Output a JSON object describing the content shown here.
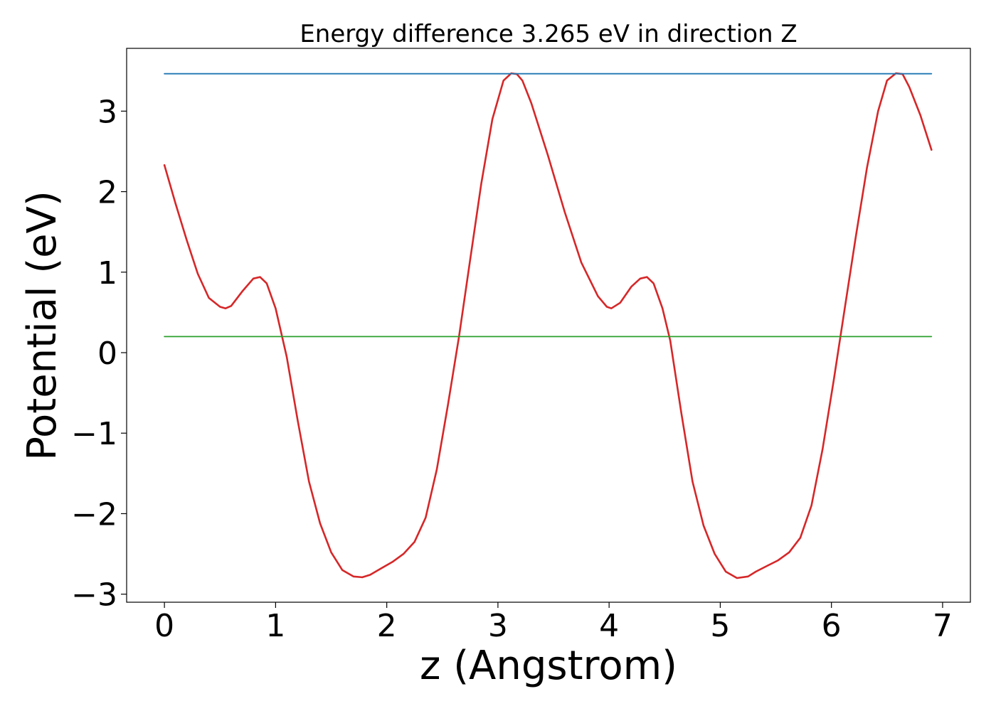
{
  "chart_data": {
    "type": "line",
    "title": "Energy difference 3.265 eV in direction Z",
    "xlabel": "z (Angstrom)",
    "ylabel": "Potential (eV)",
    "xlim": [
      -0.34,
      7.25
    ],
    "ylim": [
      -3.1,
      3.78
    ],
    "xticks": [
      0,
      1,
      2,
      3,
      4,
      5,
      6,
      7
    ],
    "xtick_labels": [
      "0",
      "1",
      "2",
      "3",
      "4",
      "5",
      "6",
      "7"
    ],
    "yticks": [
      -3,
      -2,
      -1,
      0,
      1,
      2,
      3
    ],
    "ytick_labels": [
      "−3",
      "−2",
      "−1",
      "0",
      "1",
      "2",
      "3"
    ],
    "grid": false,
    "series": [
      {
        "color": "#d62728",
        "x": [
          0.0,
          0.1,
          0.2,
          0.3,
          0.4,
          0.5,
          0.55,
          0.6,
          0.7,
          0.8,
          0.86,
          0.92,
          1.0,
          1.1,
          1.2,
          1.3,
          1.4,
          1.5,
          1.6,
          1.7,
          1.78,
          1.85,
          1.95,
          2.05,
          2.15,
          2.25,
          2.35,
          2.45,
          2.55,
          2.65,
          2.75,
          2.85,
          2.95,
          3.05,
          3.12,
          3.17,
          3.22,
          3.3,
          3.45,
          3.6,
          3.75,
          3.9,
          3.98,
          4.02,
          4.1,
          4.2,
          4.28,
          4.34,
          4.4,
          4.48,
          4.55,
          4.65,
          4.75,
          4.85,
          4.95,
          5.05,
          5.15,
          5.25,
          5.32,
          5.42,
          5.52,
          5.62,
          5.72,
          5.82,
          5.92,
          6.02,
          6.12,
          6.22,
          6.32,
          6.42,
          6.5,
          6.58,
          6.64,
          6.7,
          6.8,
          6.9
        ],
        "y": [
          2.33,
          1.85,
          1.4,
          0.98,
          0.68,
          0.57,
          0.55,
          0.58,
          0.76,
          0.92,
          0.94,
          0.86,
          0.55,
          -0.05,
          -0.85,
          -1.6,
          -2.12,
          -2.48,
          -2.7,
          -2.78,
          -2.79,
          -2.76,
          -2.68,
          -2.6,
          -2.5,
          -2.35,
          -2.05,
          -1.45,
          -0.65,
          0.2,
          1.15,
          2.1,
          2.9,
          3.38,
          3.47,
          3.46,
          3.38,
          3.1,
          2.45,
          1.75,
          1.12,
          0.7,
          0.57,
          0.55,
          0.62,
          0.82,
          0.92,
          0.94,
          0.86,
          0.55,
          0.15,
          -0.75,
          -1.6,
          -2.15,
          -2.5,
          -2.72,
          -2.8,
          -2.78,
          -2.72,
          -2.65,
          -2.58,
          -2.48,
          -2.3,
          -1.9,
          -1.2,
          -0.35,
          0.55,
          1.45,
          2.3,
          3.0,
          3.38,
          3.47,
          3.46,
          3.3,
          2.95,
          2.52
        ]
      },
      {
        "color": "#1f77b4",
        "x": [
          0.0,
          6.9
        ],
        "y": [
          3.465,
          3.465
        ]
      },
      {
        "color": "#2ca02c",
        "x": [
          0.0,
          6.9
        ],
        "y": [
          0.2,
          0.2
        ]
      }
    ]
  }
}
